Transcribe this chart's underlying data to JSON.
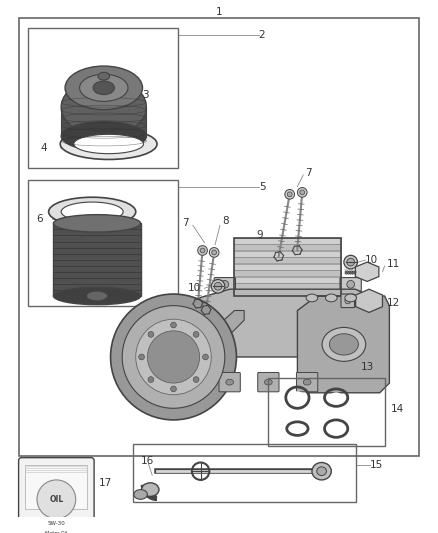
{
  "bg_color": "#ffffff",
  "border_color": "#666666",
  "line_color": "#444444",
  "fig_width": 4.38,
  "fig_height": 5.33,
  "font_size": 7.5,
  "label_color": "#333333"
}
